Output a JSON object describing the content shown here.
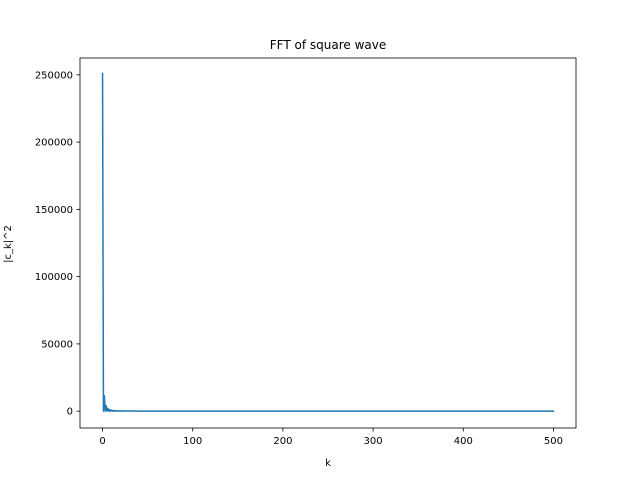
{
  "chart_data": {
    "type": "line",
    "title": "FFT of square wave",
    "xlabel": "k",
    "ylabel": "|c_k|^2",
    "xlim": [
      -25,
      525
    ],
    "ylim": [
      -12500,
      262500
    ],
    "x_ticks": [
      0,
      100,
      200,
      300,
      400,
      500
    ],
    "x_tick_labels": [
      "0",
      "100",
      "200",
      "300",
      "400",
      "500"
    ],
    "y_ticks": [
      0,
      50000,
      100000,
      150000,
      200000,
      250000
    ],
    "y_tick_labels": [
      "0",
      "50000",
      "100000",
      "150000",
      "200000",
      "250000"
    ],
    "grid": false,
    "series": [
      {
        "color": "#1f77b4",
        "x": [
          0,
          1,
          2,
          3,
          4,
          5,
          6,
          7,
          8,
          9,
          10,
          11,
          12,
          13,
          14,
          15,
          16,
          17,
          18,
          19,
          20,
          25,
          30,
          40,
          50,
          75,
          100,
          150,
          200,
          250,
          300,
          350,
          400,
          450,
          500
        ],
        "y": [
          251000,
          0,
          11500,
          0,
          4100,
          0,
          2100,
          0,
          1250,
          0,
          850,
          0,
          600,
          0,
          450,
          0,
          350,
          0,
          280,
          0,
          230,
          160,
          110,
          60,
          40,
          20,
          10,
          5,
          3,
          2,
          1,
          1,
          1,
          1,
          0
        ]
      }
    ]
  }
}
